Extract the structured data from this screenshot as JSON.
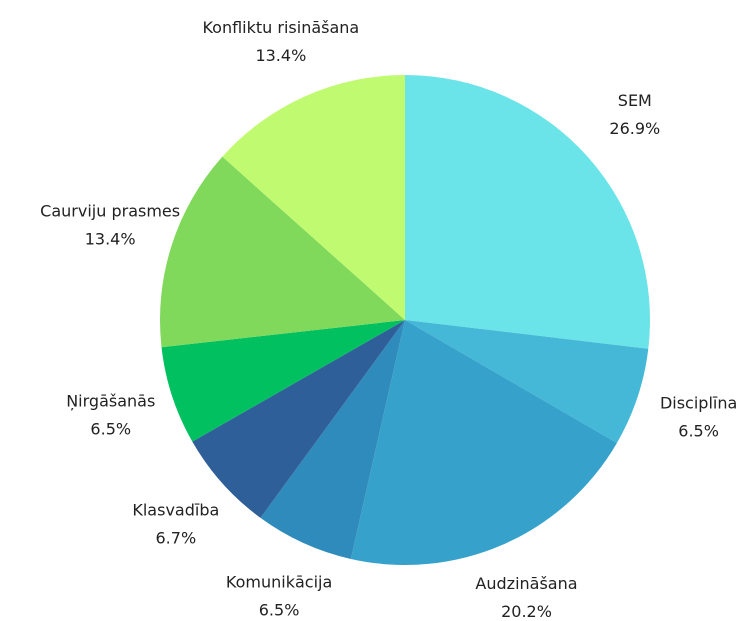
{
  "chart_data": {
    "type": "pie",
    "categories": [
      "SEM",
      "Disciplīna",
      "Audzināšana",
      "Komunikācija",
      "Klasvadība",
      "Ņirgāšanās",
      "Caurviju prasmes",
      "Konfliktu risināšana"
    ],
    "values": [
      26.9,
      6.5,
      20.2,
      6.5,
      6.7,
      6.5,
      13.4,
      13.4
    ],
    "value_labels": [
      "26.9%",
      "6.5%",
      "20.2%",
      "6.5%",
      "6.7%",
      "6.5%",
      "13.4%",
      "13.4%"
    ],
    "colors": [
      "#6ae4e8",
      "#44b8d6",
      "#36a2cb",
      "#2f8bbb",
      "#2f5f99",
      "#00c060",
      "#80d95a",
      "#c0fa70"
    ]
  }
}
